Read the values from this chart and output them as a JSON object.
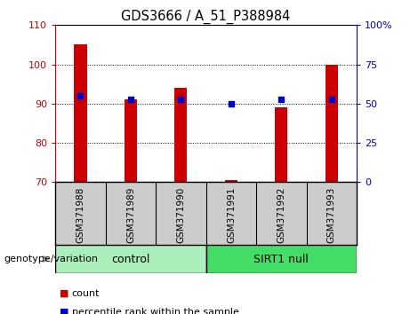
{
  "title": "GDS3666 / A_51_P388984",
  "samples": [
    "GSM371988",
    "GSM371989",
    "GSM371990",
    "GSM371991",
    "GSM371992",
    "GSM371993"
  ],
  "count_values": [
    105,
    91,
    94,
    70.5,
    89,
    100
  ],
  "percentile_values": [
    55.0,
    52.5,
    52.5,
    50.0,
    53.0,
    52.5
  ],
  "ylim_left": [
    70,
    110
  ],
  "ylim_right": [
    0,
    100
  ],
  "yticks_left": [
    70,
    80,
    90,
    100,
    110
  ],
  "yticks_right": [
    0,
    25,
    50,
    75,
    100
  ],
  "ytick_labels_right": [
    "0",
    "25",
    "50",
    "75",
    "100%"
  ],
  "bar_color": "#CC0000",
  "dot_color": "#0000CC",
  "control_color": "#AAEEBB",
  "sirt1_color": "#44DD66",
  "tick_color_left": "#CC0000",
  "tick_color_right": "#0000CC",
  "genotype_label": "genotype/variation",
  "group_labels": [
    "control",
    "SIRT1 null"
  ],
  "legend_count": "count",
  "legend_percentile": "percentile rank within the sample",
  "background_color": "#FFFFFF",
  "plot_bg_color": "#FFFFFF",
  "tick_label_area_color": "#CCCCCC",
  "bar_width": 0.25,
  "figsize": [
    4.61,
    3.54
  ],
  "dpi": 100
}
